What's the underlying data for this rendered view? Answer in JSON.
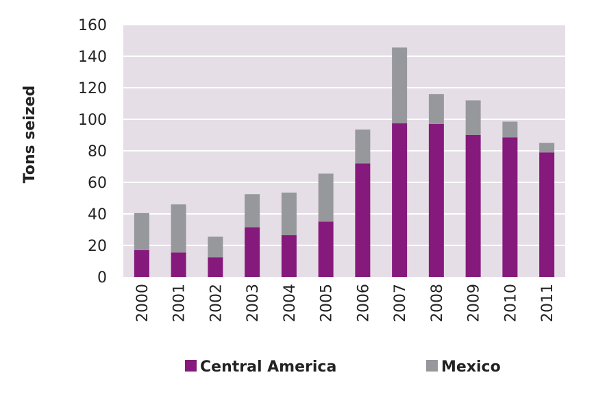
{
  "chart_data": {
    "type": "bar",
    "stacked": true,
    "title": "",
    "xlabel": "",
    "ylabel": "Tons seized",
    "ylim": [
      0,
      160
    ],
    "y_ticks": [
      "0",
      "20",
      "40",
      "60",
      "80",
      "100",
      "120",
      "140",
      "160"
    ],
    "grid": true,
    "categories": [
      "2000",
      "2001",
      "2002",
      "2003",
      "2004",
      "2005",
      "2006",
      "2007",
      "2008",
      "2009",
      "2010",
      "2011"
    ],
    "series": [
      {
        "name": "Central America",
        "color": "#86197c",
        "values": [
          17,
          15.5,
          12.5,
          31.5,
          26.5,
          35,
          72,
          97.5,
          97,
          90,
          88.5,
          79
        ]
      },
      {
        "name": "Mexico",
        "color": "#97989b",
        "values": [
          23.5,
          30.5,
          13,
          21,
          27,
          30.5,
          21.5,
          48,
          19,
          22,
          10,
          6
        ]
      }
    ],
    "legend": "bottom",
    "plot_background": "#e5dee6",
    "grid_color": "#ffffff"
  }
}
